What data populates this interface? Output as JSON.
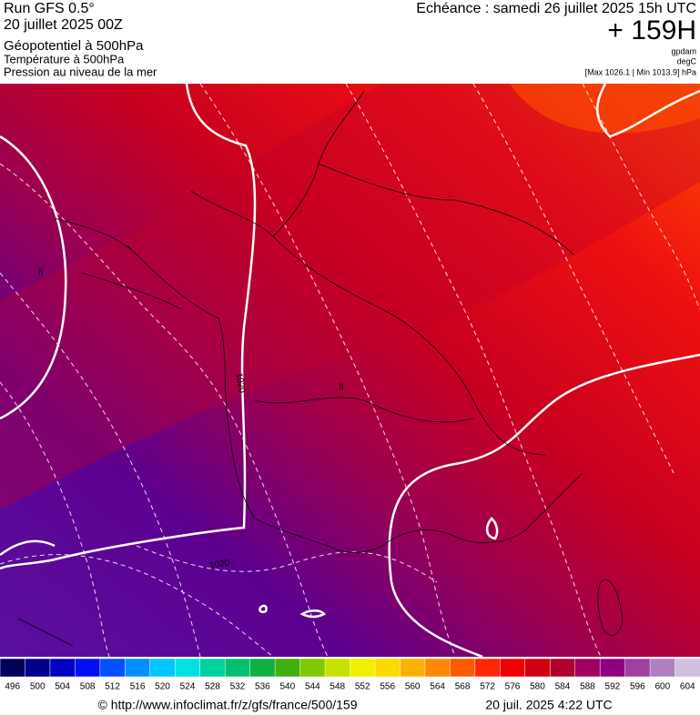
{
  "header": {
    "run": "Run GFS 0.5°",
    "date": "20 juillet 2025 00Z",
    "field1": "Géopotentiel à 500hPa",
    "field2": "Température à 500hPa",
    "field3": "Pression au niveau de la mer",
    "valid": "Echéance : samedi 26 juillet 2025 15h UTC",
    "lead": "+ 159H",
    "unit1": "gpdam",
    "unit2": "degC",
    "pressure_range": "[Max 1026.1 | Min 1013.9] hPa"
  },
  "map": {
    "isobar_labels": [
      "1020",
      "1020"
    ],
    "isotherm_labels": [
      "8",
      "8"
    ]
  },
  "colorbar": {
    "labels": [
      496,
      500,
      504,
      508,
      512,
      516,
      520,
      524,
      528,
      532,
      536,
      540,
      544,
      548,
      552,
      556,
      560,
      564,
      568,
      572,
      576,
      580,
      584,
      588,
      592,
      596,
      600,
      604
    ],
    "colors": [
      "#00005a",
      "#00008c",
      "#0000c0",
      "#0010f0",
      "#0050ff",
      "#0090ff",
      "#00c8ff",
      "#00e0e0",
      "#00d0a0",
      "#00c070",
      "#10b040",
      "#40b010",
      "#80c800",
      "#c8e000",
      "#f0f000",
      "#ffd800",
      "#ffb000",
      "#ff8800",
      "#ff5a00",
      "#ff2800",
      "#f00000",
      "#d00010",
      "#b00030",
      "#a00060",
      "#900080",
      "#a040a0",
      "#b080c0",
      "#d0c0e0"
    ]
  },
  "footer": {
    "source": "© http://www.infoclimat.fr/z/gfs/france/500/159",
    "timestamp": "20 juil. 2025  4:22 UTC"
  }
}
